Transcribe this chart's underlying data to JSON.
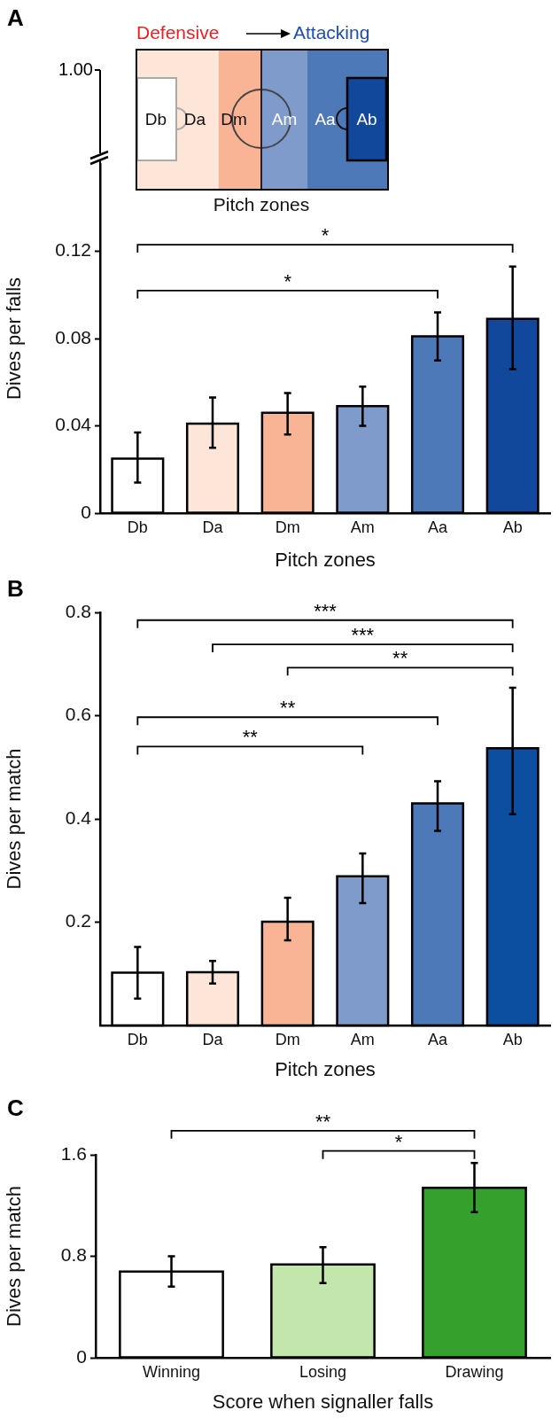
{
  "chart_data": [
    {
      "type": "bar",
      "title": "A",
      "xlabel": "Pitch zones",
      "ylabel": "Dives per falls",
      "categories": [
        "Db",
        "Da",
        "Dm",
        "Am",
        "Aa",
        "Ab"
      ],
      "values": [
        0.025,
        0.041,
        0.046,
        0.049,
        0.081,
        0.089
      ],
      "errors": [
        [
          0.014,
          0.037
        ],
        [
          0.03,
          0.053
        ],
        [
          0.036,
          0.055
        ],
        [
          0.04,
          0.058
        ],
        [
          0.07,
          0.092
        ],
        [
          0.066,
          0.113
        ]
      ],
      "colors": [
        "#ffffff",
        "#fde5d8",
        "#f9b496",
        "#7f9bcb",
        "#4e79b8",
        "#12489c"
      ],
      "ylim": [
        0,
        0.16
      ],
      "yticks": [
        0,
        0.04,
        0.08,
        0.12
      ],
      "grid": false,
      "legend": false,
      "annotations": [
        "Defensive",
        "Attacking",
        "Pitch zones",
        "1.00",
        "*",
        "*"
      ]
    },
    {
      "type": "bar",
      "title": "B",
      "xlabel": "Pitch zones",
      "ylabel": "Dives per match",
      "categories": [
        "Db",
        "Da",
        "Dm",
        "Am",
        "Aa",
        "Ab"
      ],
      "values": [
        0.102,
        0.103,
        0.201,
        0.289,
        0.43,
        0.537
      ],
      "errors": [
        [
          0.052,
          0.152
        ],
        [
          0.081,
          0.125
        ],
        [
          0.165,
          0.247
        ],
        [
          0.237,
          0.333
        ],
        [
          0.377,
          0.473
        ],
        [
          0.409,
          0.654
        ]
      ],
      "colors": [
        "#ffffff",
        "#fde5d8",
        "#f9b496",
        "#7f9bcb",
        "#4e79b8",
        "#0c4fa0"
      ],
      "ylim": [
        0,
        0.8
      ],
      "yticks": [
        0.2,
        0.4,
        0.6,
        0.8
      ],
      "grid": false,
      "legend": false,
      "annotations": [
        "***",
        "***",
        "**",
        "**",
        "**"
      ]
    },
    {
      "type": "bar",
      "title": "C",
      "xlabel": "Score when signaller falls",
      "ylabel": "Dives per match",
      "categories": [
        "Winning",
        "Losing",
        "Drawing"
      ],
      "values": [
        0.68,
        0.736,
        1.339
      ],
      "errors": [
        [
          0.561,
          0.8
        ],
        [
          0.589,
          0.872
        ],
        [
          1.147,
          1.536
        ]
      ],
      "colors": [
        "#ffffff",
        "#c3e6ad",
        "#36a02d"
      ],
      "ylim": [
        0,
        1.6
      ],
      "yticks": [
        0,
        0.8,
        1.6
      ],
      "grid": false,
      "legend": false,
      "annotations": [
        "**",
        "*"
      ]
    }
  ]
}
